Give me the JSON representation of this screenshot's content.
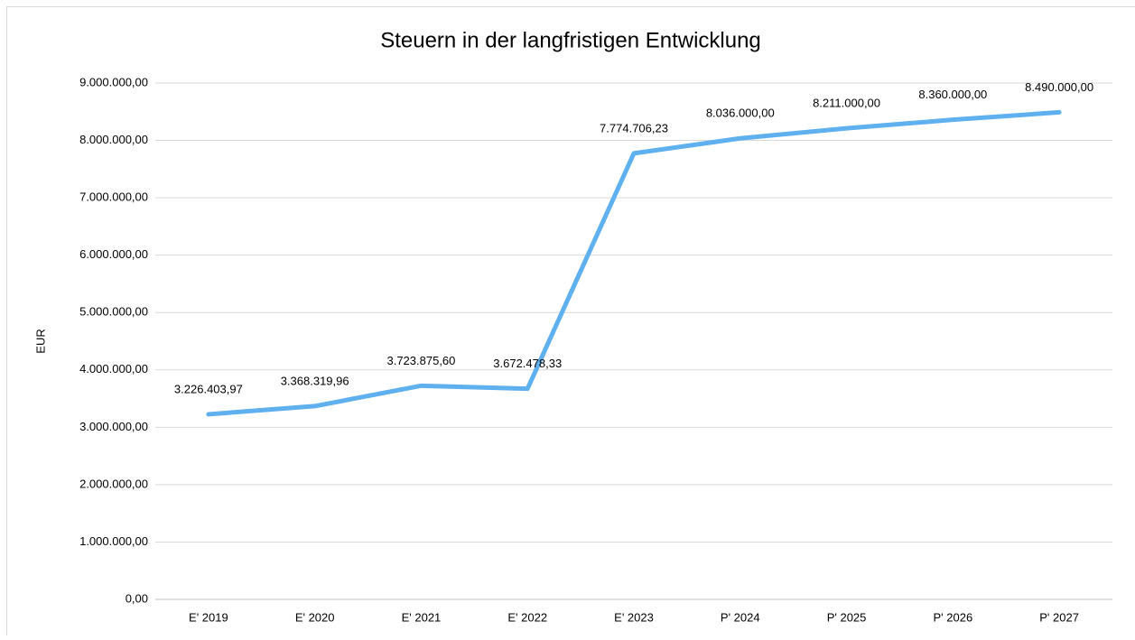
{
  "chart_data": {
    "type": "line",
    "title": "Steuern in der langfristigen Entwicklung",
    "y_label": "EUR",
    "categories": [
      "E' 2019",
      "E' 2020",
      "E' 2021",
      "E' 2022",
      "E' 2023",
      "P' 2024",
      "P' 2025",
      "P' 2026",
      "P' 2027"
    ],
    "series": [
      {
        "name": "Steuern",
        "color": "#5eb0ee",
        "values": [
          3226403.97,
          3368319.96,
          3723875.6,
          3672478.33,
          7774706.23,
          8036000,
          8211000,
          8360000,
          8490000
        ],
        "value_labels": [
          "3.226.403,97",
          "3.368.319,96",
          "3.723.875,60",
          "3.672.478,33",
          "7.774.706,23",
          "8.036.000,00",
          "8.211.000,00",
          "8.360.000,00",
          "8.490.000,00"
        ]
      }
    ],
    "ylim": [
      0,
      9000000
    ],
    "yticks": [
      {
        "value": 0,
        "label": "0,00"
      },
      {
        "value": 1000000,
        "label": "1.000.000,00"
      },
      {
        "value": 2000000,
        "label": "2.000.000,00"
      },
      {
        "value": 3000000,
        "label": "3.000.000,00"
      },
      {
        "value": 4000000,
        "label": "4.000.000,00"
      },
      {
        "value": 5000000,
        "label": "5.000.000,00"
      },
      {
        "value": 6000000,
        "label": "6.000.000,00"
      },
      {
        "value": 7000000,
        "label": "7.000.000,00"
      },
      {
        "value": 8000000,
        "label": "8.000.000,00"
      },
      {
        "value": 9000000,
        "label": "9.000.000,00"
      }
    ],
    "grid": true
  }
}
